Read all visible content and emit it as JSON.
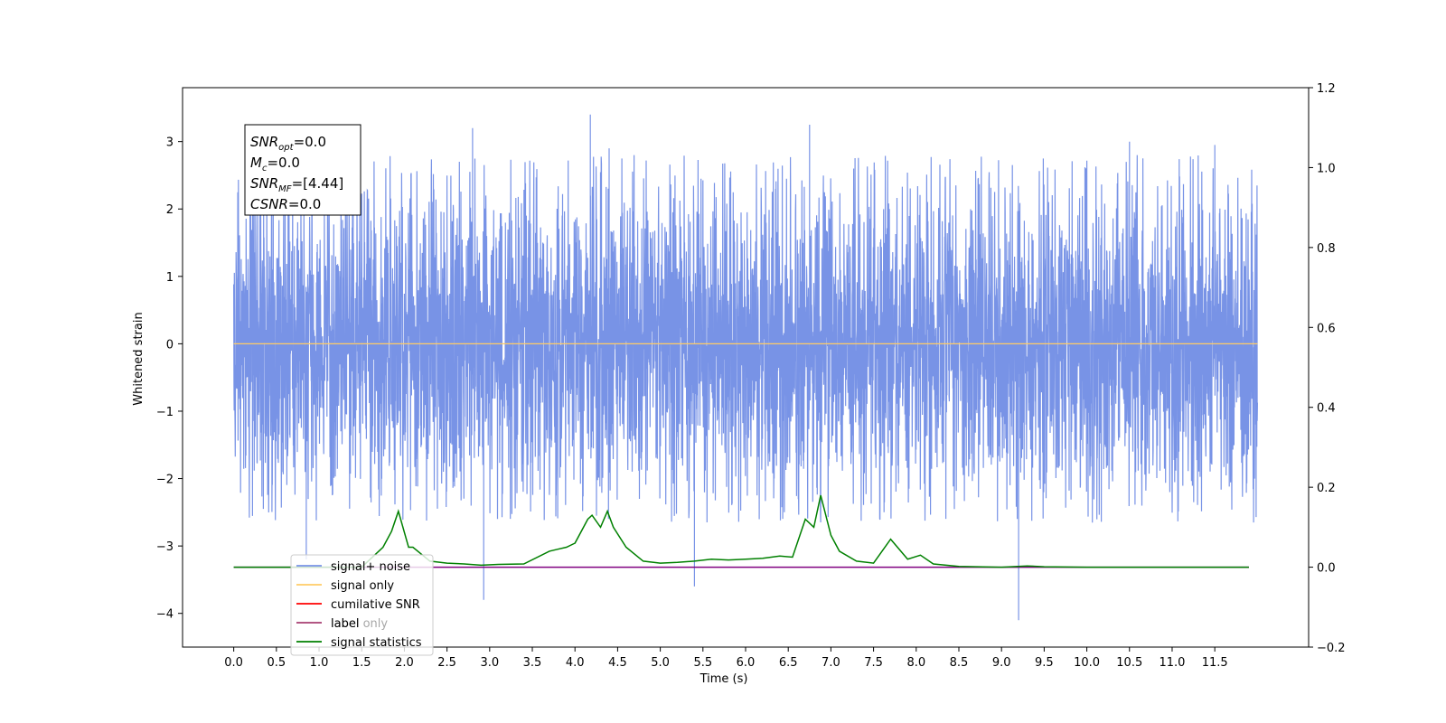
{
  "chart_data": {
    "type": "line",
    "xlabel": "Time (s)",
    "ylabel": "Whitened strain",
    "xlim": [
      -0.6,
      12.6
    ],
    "ylim": [
      -4.5,
      3.8
    ],
    "y2lim": [
      -0.2,
      1.2
    ],
    "x_ticks": [
      "0.0",
      "0.5",
      "1.0",
      "1.5",
      "2.0",
      "2.5",
      "3.0",
      "3.5",
      "4.0",
      "4.5",
      "5.0",
      "5.5",
      "6.0",
      "6.5",
      "7.0",
      "7.5",
      "8.0",
      "8.5",
      "9.0",
      "9.5",
      "10.0",
      "10.5",
      "11.0",
      "11.5"
    ],
    "y_ticks": [
      "3",
      "2",
      "1",
      "0",
      "−1",
      "−2",
      "−3",
      "−4"
    ],
    "y2_ticks": [
      "1.2",
      "1.0",
      "0.8",
      "0.6",
      "0.4",
      "0.2",
      "0.0",
      "−0.2"
    ],
    "grid": false,
    "legend_position": "lower-left",
    "legend": [
      {
        "label": "signal+ noise",
        "color": "#7893e6"
      },
      {
        "label": "signal only",
        "color": "#ffcc66"
      },
      {
        "label": "cumilative SNR",
        "color": "#ff0000"
      },
      {
        "label": "label",
        "color": "#800080"
      },
      {
        "label": "label only",
        "color": "#ffcc66",
        "faded": true
      },
      {
        "label": "signal statistics",
        "color": "#008000"
      }
    ],
    "annotation": [
      {
        "main": "SNR",
        "sub": "opt",
        "value": "=0.0"
      },
      {
        "main": "M",
        "sub": "c",
        "value": "=0.0"
      },
      {
        "main": "SNR",
        "sub": "MF",
        "value": "=[4.44]"
      },
      {
        "main": "CSNR",
        "sub": "",
        "value": "=0.0"
      }
    ],
    "series": [
      {
        "name": "signal+ noise",
        "axis": "left",
        "color": "#7893e6",
        "x_range": [
          0.0,
          12.0
        ],
        "envelope_typical": [
          -1.9,
          2.0
        ],
        "envelope_extreme": [
          -4.1,
          3.4
        ],
        "peaks": [
          {
            "x": 0.85,
            "y": -3.2
          },
          {
            "x": 1.4,
            "y": 2.6
          },
          {
            "x": 2.8,
            "y": 3.2
          },
          {
            "x": 2.93,
            "y": -3.8
          },
          {
            "x": 4.18,
            "y": 3.4
          },
          {
            "x": 4.4,
            "y": 2.9
          },
          {
            "x": 5.4,
            "y": -3.6
          },
          {
            "x": 6.75,
            "y": 3.25
          },
          {
            "x": 9.2,
            "y": -4.1
          },
          {
            "x": 10.5,
            "y": 3.0
          },
          {
            "x": 11.5,
            "y": 2.95
          }
        ]
      },
      {
        "name": "signal only",
        "axis": "left",
        "color": "#ffcc66",
        "x": [
          0.0,
          12.0
        ],
        "y": [
          0.0,
          0.0
        ]
      },
      {
        "name": "label",
        "axis": "right",
        "color": "#800080",
        "x": [
          0.0,
          11.9
        ],
        "y": [
          0.0,
          0.0
        ]
      },
      {
        "name": "signal statistics",
        "axis": "right",
        "color": "#008000",
        "x": [
          0.0,
          1.0,
          1.5,
          1.75,
          1.85,
          1.93,
          2.05,
          2.1,
          2.3,
          2.5,
          2.7,
          2.9,
          3.1,
          3.4,
          3.7,
          3.8,
          3.9,
          4.0,
          4.15,
          4.2,
          4.3,
          4.38,
          4.45,
          4.6,
          4.8,
          5.0,
          5.2,
          5.4,
          5.6,
          5.8,
          6.0,
          6.2,
          6.4,
          6.55,
          6.7,
          6.8,
          6.88,
          7.0,
          7.1,
          7.3,
          7.5,
          7.7,
          7.9,
          8.05,
          8.2,
          8.5,
          9.0,
          9.3,
          9.5,
          10.0,
          11.9
        ],
        "y": [
          0.0,
          0.0,
          0.0,
          0.05,
          0.09,
          0.14,
          0.05,
          0.05,
          0.015,
          0.01,
          0.008,
          0.005,
          0.007,
          0.008,
          0.04,
          0.045,
          0.05,
          0.06,
          0.12,
          0.13,
          0.1,
          0.14,
          0.1,
          0.05,
          0.015,
          0.01,
          0.012,
          0.015,
          0.02,
          0.018,
          0.02,
          0.022,
          0.028,
          0.025,
          0.12,
          0.1,
          0.18,
          0.08,
          0.04,
          0.015,
          0.01,
          0.07,
          0.02,
          0.03,
          0.008,
          0.002,
          0.0,
          0.003,
          0.001,
          0.0,
          0.0
        ]
      }
    ]
  }
}
